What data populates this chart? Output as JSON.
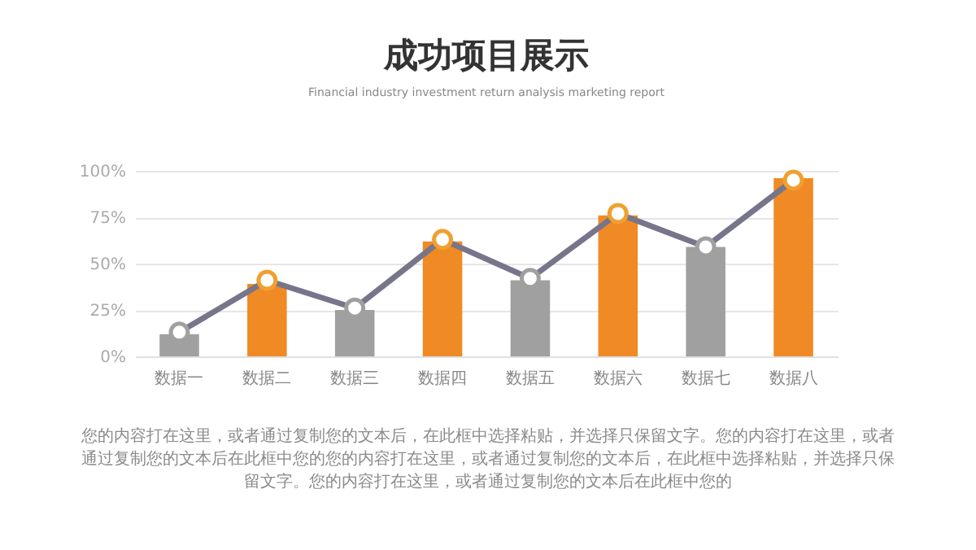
{
  "chart_data": {
    "type": "bar",
    "title": "成功项目展示",
    "subtitle": "Financial industry investment return analysis marketing report",
    "categories": [
      "数据一",
      "数据二",
      "数据三",
      "数据四",
      "数据五",
      "数据六",
      "数据七",
      "数据八"
    ],
    "series": [
      {
        "type": "bar",
        "values": [
          12,
          39,
          25,
          62,
          41,
          76,
          59,
          96
        ],
        "colors": [
          "#a0a0a0",
          "#f08a24",
          "#a0a0a0",
          "#f08a24",
          "#a0a0a0",
          "#f08a24",
          "#a0a0a0",
          "#f08a24"
        ]
      },
      {
        "type": "line",
        "color": "#77758a",
        "values": [
          13,
          41,
          26,
          63,
          42,
          77,
          59,
          95
        ],
        "colors": [
          "#a0a0a0",
          "#f0a030",
          "#a0a0a0",
          "#f0a030",
          "#a0a0a0",
          "#f0a030",
          "#a0a0a0",
          "#f0a030"
        ]
      }
    ],
    "ylim": [
      0,
      100
    ],
    "yticks": [
      {
        "value": 0,
        "label": "0%"
      },
      {
        "value": 25,
        "label": "25%"
      },
      {
        "value": 50,
        "label": "50%"
      },
      {
        "value": 75,
        "label": "75%"
      },
      {
        "value": 100,
        "label": "100%"
      }
    ],
    "grid": "y",
    "marker": "circle",
    "line_style": "solid",
    "annotations": [
      "您的内容打在这里，或者通过复制您的文本后，在此框中选择粘贴，并选择只保留文字。您的内容打在这里，或者通过复制您的文本后在此框中您的您的内容打在这里，或者通过复制您的文本后，在此框中选择粘贴，并选择只保留文字。您的内容打在这里，或者通过复制您的文本后在此框中您的"
    ]
  }
}
